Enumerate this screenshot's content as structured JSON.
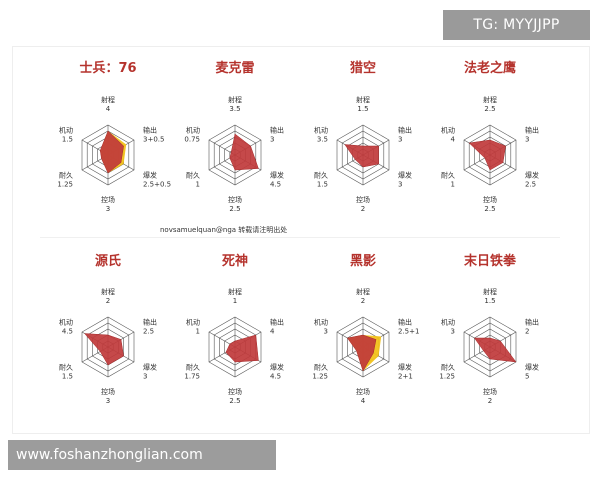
{
  "watermark_top": "TG: MYYJJPP",
  "watermark_bottom": "www.foshanzhonglian.com",
  "credit": "novsamuelquan@nga 转载请注明出处",
  "colors": {
    "title": "#b5332d",
    "fill": "#c0393b",
    "fill_bonus": "#f2c21a",
    "grid": "#555555"
  },
  "axes": [
    "射程",
    "输出",
    "爆发",
    "控场",
    "耐久",
    "机动"
  ],
  "chart_data": [
    {
      "type": "radar",
      "title": "士兵：76",
      "labels": [
        "射程",
        "输出",
        "爆发",
        "控场",
        "耐久",
        "机动"
      ],
      "value_text": [
        "4",
        "3+0.5",
        "2.5+0.5",
        "3",
        "1.25",
        "1.5"
      ],
      "values": [
        4,
        3,
        2.5,
        3,
        1.25,
        1.5
      ],
      "bonus_values": [
        4,
        3.5,
        3,
        3,
        1.25,
        1.5
      ]
    },
    {
      "type": "radar",
      "title": "麦克雷",
      "labels": [
        "射程",
        "输出",
        "爆发",
        "控场",
        "耐久",
        "机动"
      ],
      "value_text": [
        "3.5",
        "3",
        "4.5",
        "2.5",
        "1",
        "0.75"
      ],
      "values": [
        3.5,
        3,
        4.5,
        2.5,
        1,
        0.75
      ]
    },
    {
      "type": "radar",
      "title": "猎空",
      "labels": [
        "射程",
        "输出",
        "爆发",
        "控场",
        "耐久",
        "机动"
      ],
      "value_text": [
        "1.5",
        "3",
        "3",
        "2",
        "1.5",
        "3.5"
      ],
      "values": [
        1.5,
        3,
        3,
        2,
        1.5,
        3.5
      ]
    },
    {
      "type": "radar",
      "title": "法老之鹰",
      "labels": [
        "射程",
        "输出",
        "爆发",
        "控场",
        "耐久",
        "机动"
      ],
      "value_text": [
        "2.5",
        "3",
        "2.5",
        "2.5",
        "1",
        "4"
      ],
      "values": [
        2.5,
        3,
        2.5,
        2.5,
        1,
        4
      ]
    },
    {
      "type": "radar",
      "title": "源氏",
      "labels": [
        "射程",
        "输出",
        "爆发",
        "控场",
        "耐久",
        "机动"
      ],
      "value_text": [
        "2",
        "2.5",
        "3",
        "3",
        "1.5",
        "4.5"
      ],
      "values": [
        2,
        2.5,
        3,
        3,
        1.5,
        4.5
      ]
    },
    {
      "type": "radar",
      "title": "死神",
      "labels": [
        "射程",
        "输出",
        "爆发",
        "控场",
        "耐久",
        "机动"
      ],
      "value_text": [
        "1",
        "4",
        "4.5",
        "2.5",
        "1.75",
        "1"
      ],
      "values": [
        1,
        4,
        4.5,
        2.5,
        1.75,
        1
      ]
    },
    {
      "type": "radar",
      "title": "黑影",
      "labels": [
        "射程",
        "输出",
        "爆发",
        "控场",
        "耐久",
        "机动"
      ],
      "value_text": [
        "2",
        "2.5+1",
        "2+1",
        "4",
        "1.25",
        "3"
      ],
      "values": [
        2,
        2.5,
        2,
        4,
        1.25,
        3
      ],
      "bonus_values": [
        2,
        3.5,
        3,
        4,
        1.25,
        3
      ]
    },
    {
      "type": "radar",
      "title": "末日铁拳",
      "labels": [
        "射程",
        "输出",
        "爆发",
        "控场",
        "耐久",
        "机动"
      ],
      "value_text": [
        "1.5",
        "2",
        "5",
        "2",
        "1.25",
        "3"
      ],
      "values": [
        1.5,
        2,
        5,
        2,
        1.25,
        3
      ]
    }
  ]
}
